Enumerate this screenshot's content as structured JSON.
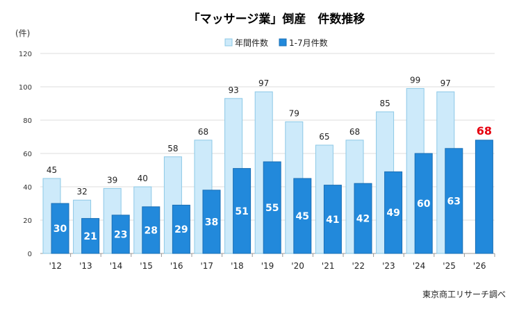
{
  "chart_data": {
    "type": "bar",
    "title": "「マッサージ業」倒産　件数推移",
    "y_unit": "(件)",
    "ylim": [
      0,
      120
    ],
    "yticks": [
      0,
      20,
      40,
      60,
      80,
      100,
      120
    ],
    "grid": true,
    "legend_position": "top-center",
    "categories": [
      "'12",
      "'13",
      "'14",
      "'15",
      "'16",
      "'17",
      "'18",
      "'19",
      "'20",
      "'21",
      "'22",
      "'23",
      "'24",
      "'25",
      "'26"
    ],
    "series": [
      {
        "name": "年間件数",
        "color": "#cdeafa",
        "stroke": "#8cc8e6",
        "values": [
          45,
          32,
          39,
          40,
          58,
          68,
          93,
          97,
          79,
          65,
          68,
          85,
          99,
          97,
          null
        ]
      },
      {
        "name": "1-7月件数",
        "color": "#2289db",
        "stroke": "#1a6fb5",
        "values": [
          30,
          21,
          23,
          28,
          29,
          38,
          51,
          55,
          45,
          41,
          42,
          49,
          60,
          63,
          68
        ]
      }
    ],
    "highlight": {
      "category": "'26",
      "series": "1-7月件数",
      "color": "#e6000f"
    },
    "source": "東京商工リサーチ調べ"
  }
}
